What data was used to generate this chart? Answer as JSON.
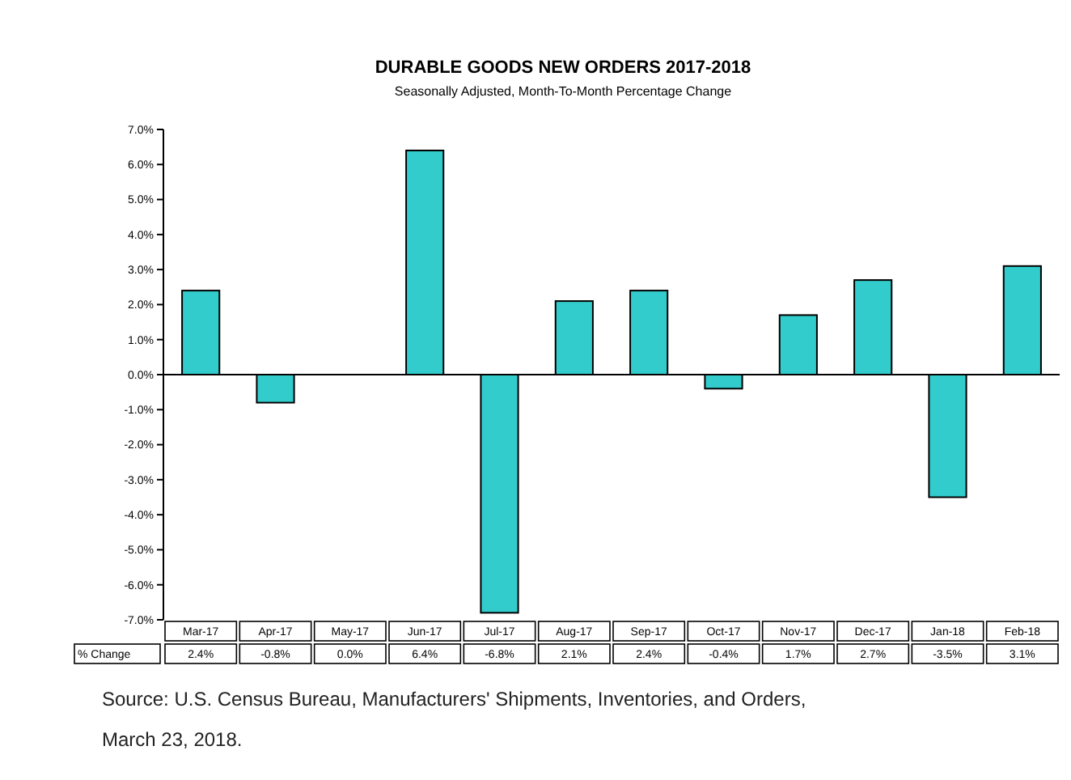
{
  "chart_data": {
    "type": "bar",
    "title": "DURABLE GOODS NEW ORDERS 2017-2018",
    "subtitle": "Seasonally Adjusted, Month-To-Month Percentage Change",
    "categories": [
      "Mar-17",
      "Apr-17",
      "May-17",
      "Jun-17",
      "Jul-17",
      "Aug-17",
      "Sep-17",
      "Oct-17",
      "Nov-17",
      "Dec-17",
      "Jan-18",
      "Feb-18"
    ],
    "series": [
      {
        "name": "% Change",
        "color": "#33cccc",
        "values": [
          2.4,
          -0.8,
          0.0,
          6.4,
          -6.8,
          2.1,
          2.4,
          -0.4,
          1.7,
          2.7,
          -3.5,
          3.1
        ],
        "value_labels": [
          "2.4%",
          "-0.8%",
          "0.0%",
          "6.4%",
          "-6.8%",
          "2.1%",
          "2.4%",
          "-0.4%",
          "1.7%",
          "2.7%",
          "-3.5%",
          "3.1%"
        ]
      }
    ],
    "ylim": [
      -7,
      7
    ],
    "yticks": [
      {
        "value": -7,
        "label": "-7.0%"
      },
      {
        "value": -6,
        "label": "-6.0%"
      },
      {
        "value": -5,
        "label": "-5.0%"
      },
      {
        "value": -4,
        "label": "-4.0%"
      },
      {
        "value": -3,
        "label": "-3.0%"
      },
      {
        "value": -2,
        "label": "-2.0%"
      },
      {
        "value": -1,
        "label": "-1.0%"
      },
      {
        "value": 0,
        "label": "0.0%"
      },
      {
        "value": 1,
        "label": "1.0%"
      },
      {
        "value": 2,
        "label": "2.0%"
      },
      {
        "value": 3,
        "label": "3.0%"
      },
      {
        "value": 4,
        "label": "4.0%"
      },
      {
        "value": 5,
        "label": "5.0%"
      },
      {
        "value": 6,
        "label": "6.0%"
      },
      {
        "value": 7,
        "label": "7.0%"
      }
    ],
    "annotations": [
      "Source: U.S. Census Bureau, Manufacturers' Shipments, Inventories, and Orders, March 23,  2018."
    ]
  }
}
